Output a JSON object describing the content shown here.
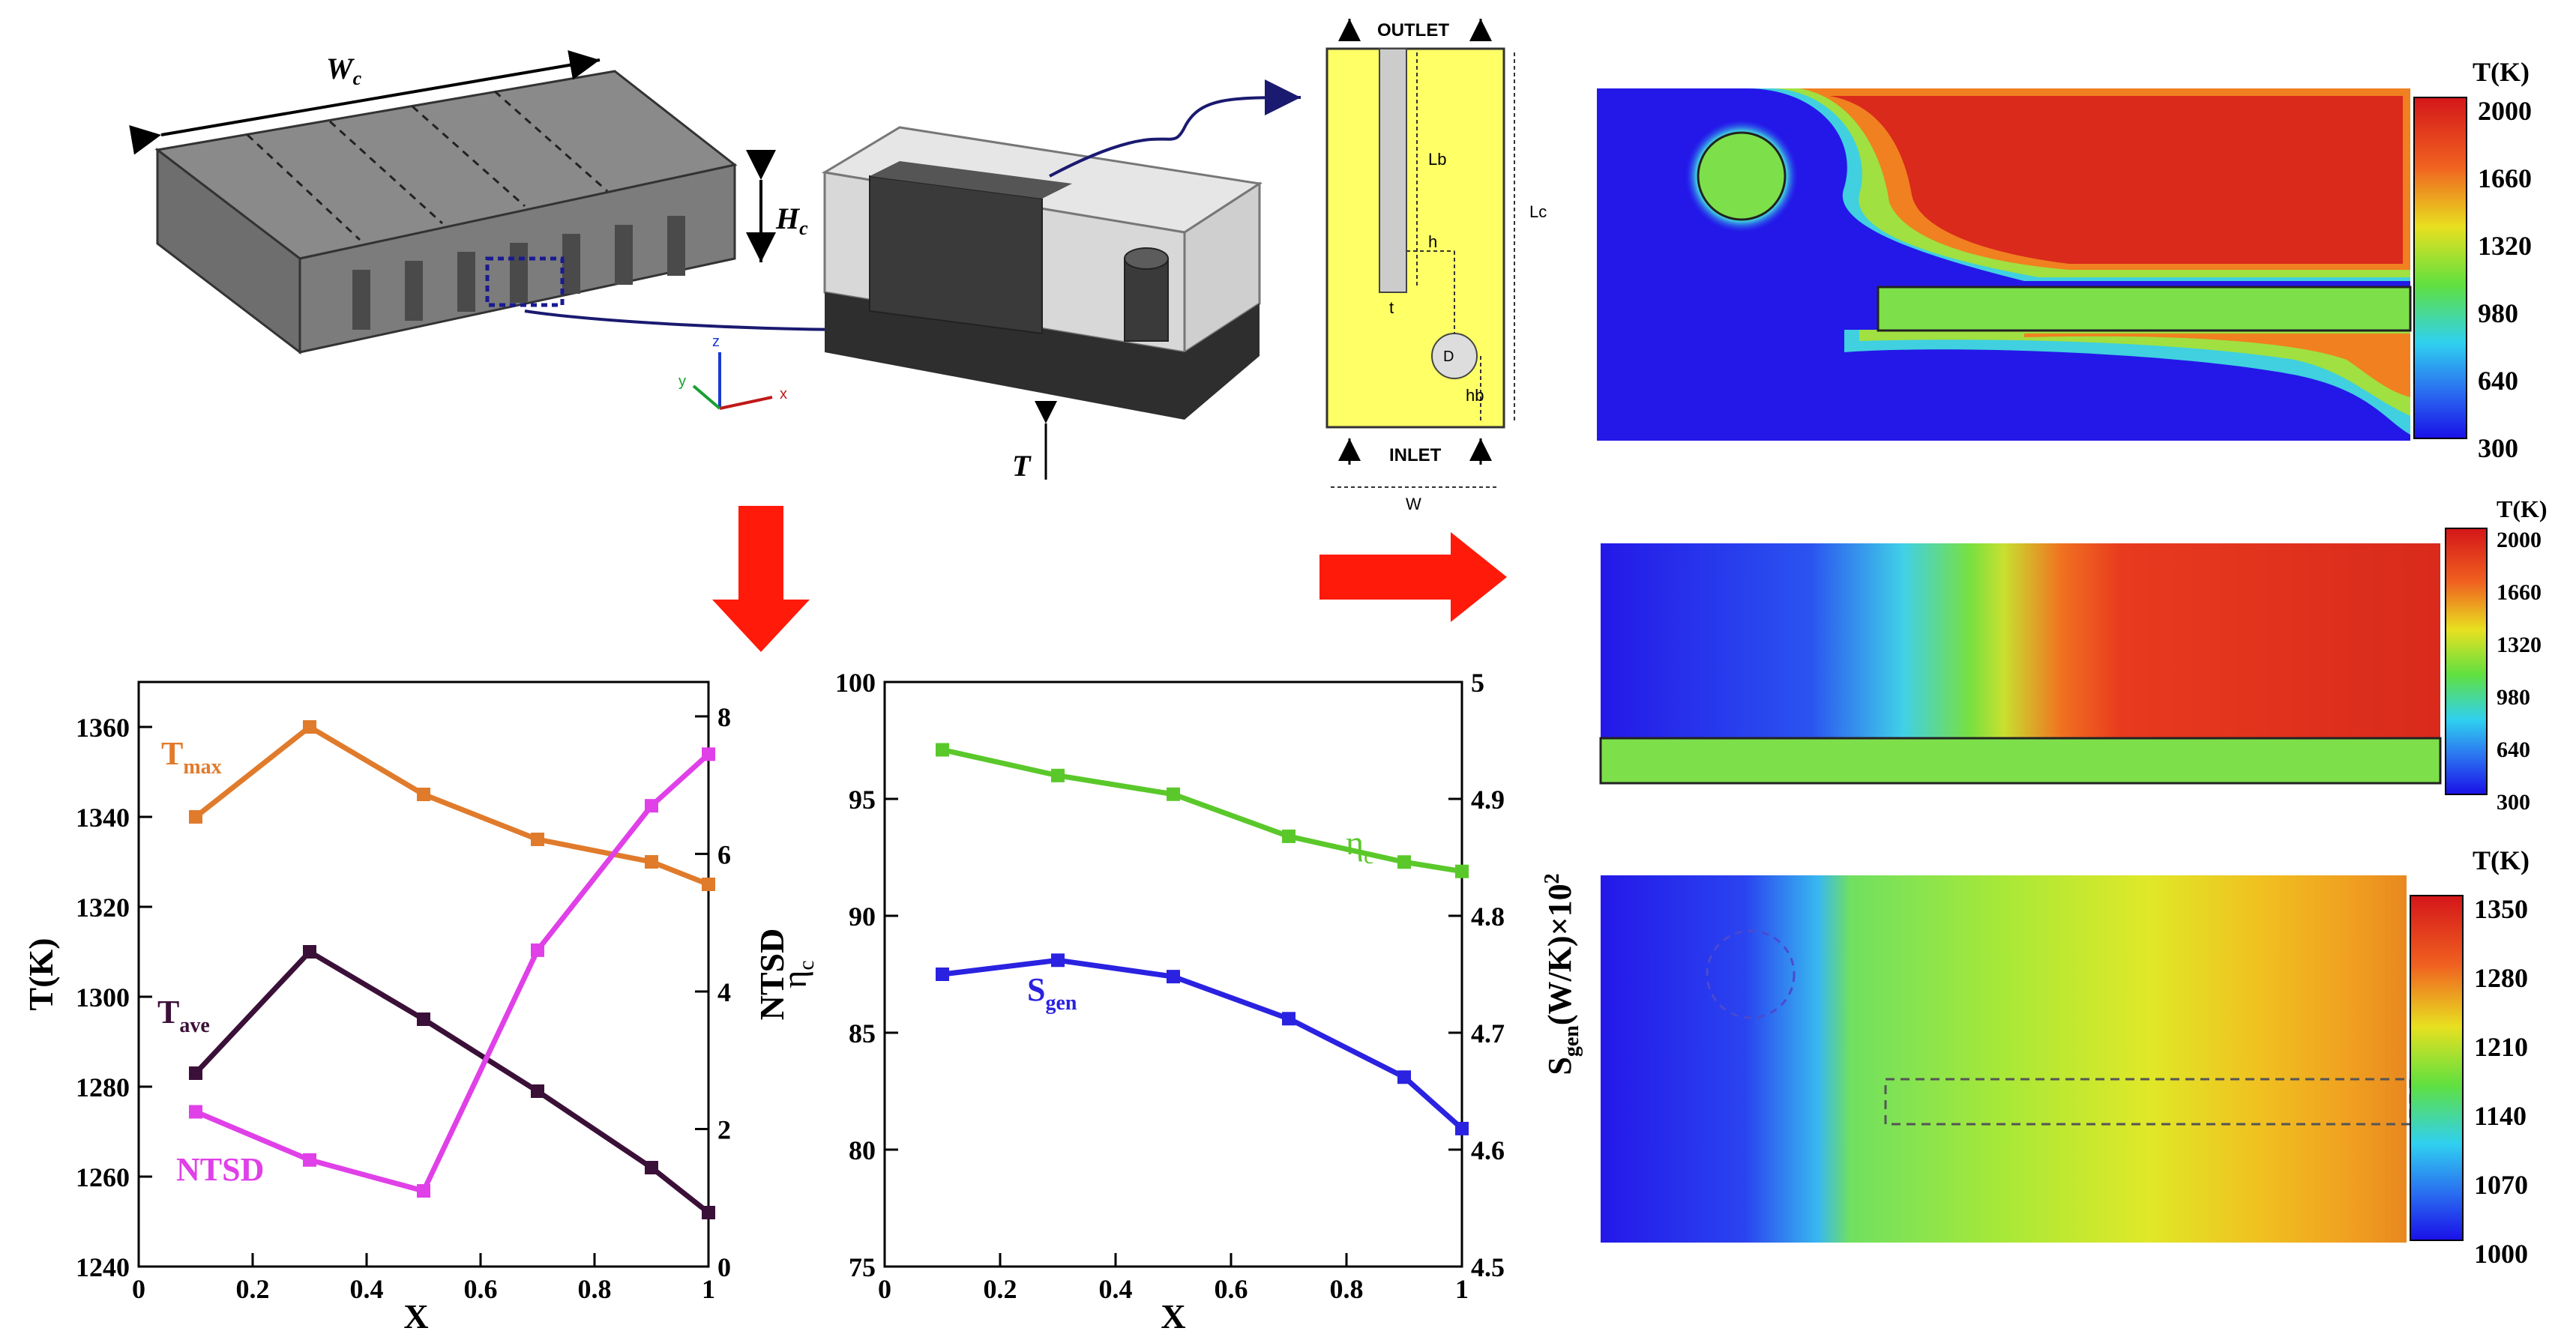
{
  "colors": {
    "t_max": "#e07b2c",
    "t_ave": "#3b1038",
    "ntsd": "#e040e8",
    "eta_c": "#5ac82a",
    "s_gen": "#2a22e0",
    "red_arrow": "#ff1a0a",
    "domain_yellow": "#ffff66"
  },
  "diagram": {
    "label_wc": "W",
    "label_wc_sub": "c",
    "label_hc": "H",
    "label_hc_sub": "c",
    "label_t": "T",
    "axis_z": "z",
    "axis_y": "y",
    "axis_x": "x"
  },
  "schematic": {
    "outlet": "OUTLET",
    "inlet": "INLET",
    "lb": "Lb",
    "lc": "Lc",
    "h": "h",
    "t": "t",
    "d": "D",
    "hb": "hb",
    "w": "W"
  },
  "contours": [
    {
      "title": "T(K)",
      "ticks": [
        "2000",
        "1660",
        "1320",
        "980",
        "640",
        "300"
      ]
    },
    {
      "title": "T(K)",
      "ticks": [
        "2000",
        "1660",
        "1320",
        "980",
        "640",
        "300"
      ]
    },
    {
      "title": "T(K)",
      "ticks": [
        "1350",
        "1280",
        "1210",
        "1140",
        "1070",
        "1000"
      ]
    }
  ],
  "chart_data": [
    {
      "type": "line",
      "xlabel": "X",
      "ylabel": "T(K)",
      "y2label": "NTSD",
      "xlim": [
        0,
        1
      ],
      "ylim": [
        1240,
        1370
      ],
      "y2lim": [
        0,
        8.5
      ],
      "xticks": [
        "0",
        "0.2",
        "0.4",
        "0.6",
        "0.8",
        "1"
      ],
      "yticks": [
        "1240",
        "1260",
        "1280",
        "1300",
        "1320",
        "1340",
        "1360"
      ],
      "y2ticks": [
        "0",
        "2",
        "4",
        "6",
        "8"
      ],
      "x": [
        0.1,
        0.3,
        0.5,
        0.7,
        0.9,
        1.0
      ],
      "series": [
        {
          "name": "T",
          "name_sub": "max",
          "axis": "left",
          "values": [
            1340,
            1360,
            1345,
            1335,
            1330,
            1325
          ]
        },
        {
          "name": "T",
          "name_sub": "ave",
          "axis": "left",
          "values": [
            1283,
            1310,
            1295,
            1279,
            1262,
            1252
          ]
        },
        {
          "name": "NTSD",
          "name_sub": "",
          "axis": "right",
          "values": [
            2.25,
            1.55,
            1.1,
            4.6,
            6.7,
            7.45
          ]
        }
      ]
    },
    {
      "type": "line",
      "xlabel": "X",
      "ylabel": "η",
      "ylabel_sub": "c",
      "y2label": "S",
      "y2label_sub": "gen",
      "y2label_rest": "(W/K)×10",
      "y2label_sup": "2",
      "xlim": [
        0,
        1
      ],
      "ylim": [
        75,
        100
      ],
      "y2lim": [
        4.5,
        5.0
      ],
      "xticks": [
        "0",
        "0.2",
        "0.4",
        "0.6",
        "0.8",
        "1"
      ],
      "yticks": [
        "75",
        "80",
        "85",
        "90",
        "95",
        "100"
      ],
      "y2ticks": [
        "4.5",
        "4.6",
        "4.7",
        "4.8",
        "4.9",
        "5"
      ],
      "x": [
        0.1,
        0.3,
        0.5,
        0.7,
        0.9,
        1.0
      ],
      "series": [
        {
          "name": "η",
          "name_sub": "c",
          "axis": "left",
          "values": [
            97.1,
            96.0,
            95.2,
            93.4,
            92.3,
            91.9
          ]
        },
        {
          "name": "S",
          "name_sub": "gen",
          "axis": "left",
          "values": [
            87.5,
            88.1,
            87.4,
            85.6,
            83.1,
            80.9
          ]
        }
      ]
    }
  ]
}
